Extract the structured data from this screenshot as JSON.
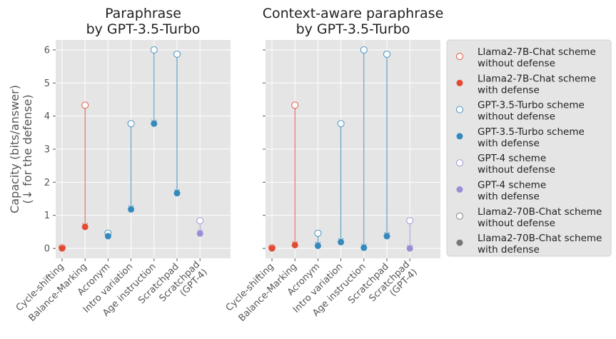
{
  "chart_data": [
    {
      "type": "scatter",
      "title_lines": [
        "Paraphrase",
        "by GPT-3.5-Turbo"
      ],
      "ylabel_lines": [
        "Capacity (bits/answer)",
        "(↓ for the defense)"
      ],
      "ylim": [
        -0.3,
        6.3
      ],
      "yticks": [
        "0",
        "1",
        "2",
        "3",
        "4",
        "5",
        "6"
      ],
      "categories": [
        "Cycle-shifting",
        "Balance-Marking",
        "Acronym",
        "Intro variation",
        "Age instruction",
        "Scratchpad",
        "Scratchpad\n(GPT-4)"
      ],
      "points": [
        {
          "category": "Cycle-shifting",
          "scheme": "llama7",
          "without_defense": 0.02,
          "with_defense": 0.0
        },
        {
          "category": "Balance-Marking",
          "scheme": "llama7",
          "without_defense": 4.33,
          "with_defense": 0.65
        },
        {
          "category": "Acronym",
          "scheme": "gpt35",
          "without_defense": 0.46,
          "with_defense": 0.37
        },
        {
          "category": "Intro variation",
          "scheme": "gpt35",
          "without_defense": 3.77,
          "with_defense": 1.18
        },
        {
          "category": "Age instruction",
          "scheme": "gpt35",
          "without_defense": 6.0,
          "with_defense": 3.77
        },
        {
          "category": "Scratchpad",
          "scheme": "gpt35",
          "without_defense": 5.87,
          "with_defense": 1.67
        },
        {
          "category": "Scratchpad\n(GPT-4)",
          "scheme": "gpt4",
          "without_defense": 0.84,
          "with_defense": 0.45
        }
      ]
    },
    {
      "type": "scatter",
      "title_lines": [
        "Context-aware paraphrase",
        "by GPT-3.5-Turbo"
      ],
      "ylim": [
        -0.3,
        6.3
      ],
      "categories": [
        "Cycle-shifting",
        "Balance-Marking",
        "Acronym",
        "Intro variation",
        "Age instruction",
        "Scratchpad",
        "Scratchpad\n(GPT-4)"
      ],
      "points": [
        {
          "category": "Cycle-shifting",
          "scheme": "llama7",
          "without_defense": 0.02,
          "with_defense": 0.0
        },
        {
          "category": "Balance-Marking",
          "scheme": "llama7",
          "without_defense": 4.33,
          "with_defense": 0.1
        },
        {
          "category": "Acronym",
          "scheme": "gpt35",
          "without_defense": 0.46,
          "with_defense": 0.08
        },
        {
          "category": "Intro variation",
          "scheme": "gpt35",
          "without_defense": 3.77,
          "with_defense": 0.19
        },
        {
          "category": "Age instruction",
          "scheme": "gpt35",
          "without_defense": 6.0,
          "with_defense": 0.02
        },
        {
          "category": "Scratchpad",
          "scheme": "gpt35",
          "without_defense": 5.87,
          "with_defense": 0.37
        },
        {
          "category": "Scratchpad\n(GPT-4)",
          "scheme": "gpt4",
          "without_defense": 0.84,
          "with_defense": 0.0
        }
      ]
    }
  ],
  "schemes": {
    "llama7": {
      "color": "#E24A33"
    },
    "gpt35": {
      "color": "#348ABD"
    },
    "gpt4": {
      "color": "#988ED5"
    },
    "llama70": {
      "color": "#777777"
    }
  },
  "legend": {
    "placement": "right",
    "entries": [
      {
        "scheme": "llama7",
        "filled": false,
        "lines": [
          "Llama2-7B-Chat scheme",
          "without defense"
        ]
      },
      {
        "scheme": "llama7",
        "filled": true,
        "lines": [
          "Llama2-7B-Chat scheme",
          "with defense"
        ]
      },
      {
        "scheme": "gpt35",
        "filled": false,
        "lines": [
          "GPT-3.5-Turbo scheme",
          "without defense"
        ]
      },
      {
        "scheme": "gpt35",
        "filled": true,
        "lines": [
          "GPT-3.5-Turbo scheme",
          "with defense"
        ]
      },
      {
        "scheme": "gpt4",
        "filled": false,
        "lines": [
          "GPT-4 scheme",
          "without defense"
        ]
      },
      {
        "scheme": "gpt4",
        "filled": true,
        "lines": [
          "GPT-4 scheme",
          "with defense"
        ]
      },
      {
        "scheme": "llama70",
        "filled": false,
        "lines": [
          "Llama2-70B-Chat scheme",
          "without defense"
        ]
      },
      {
        "scheme": "llama70",
        "filled": true,
        "lines": [
          "Llama2-70B-Chat scheme",
          "with defense"
        ]
      }
    ]
  }
}
